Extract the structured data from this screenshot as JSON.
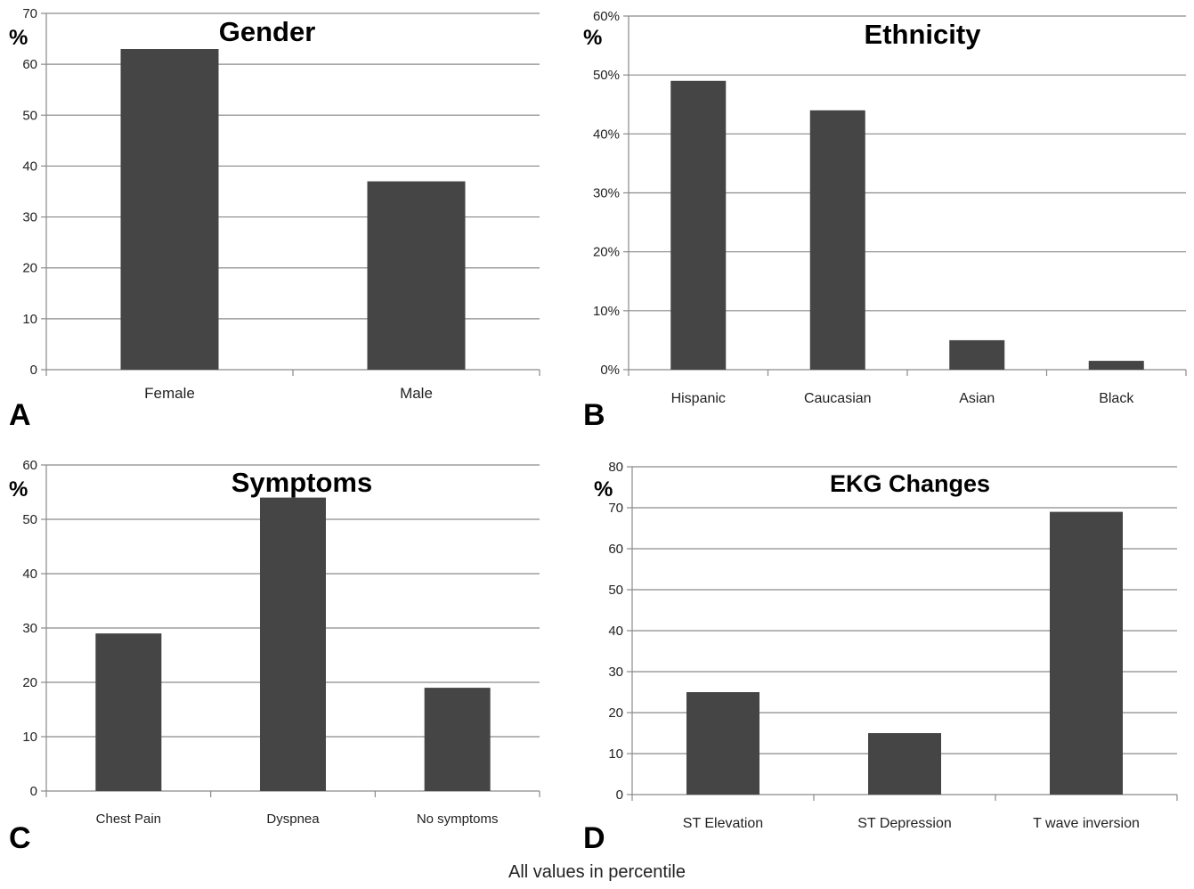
{
  "caption": "All values in percentile",
  "chart_data": [
    {
      "type": "bar",
      "panel_label": "A",
      "title": "Gender",
      "ylabel": "%",
      "categories": [
        "Female",
        "Male"
      ],
      "values": [
        63,
        37
      ],
      "ylim": [
        0,
        70
      ],
      "yticks": [
        0,
        10,
        20,
        30,
        40,
        50,
        60,
        70
      ],
      "ytick_suffix": "",
      "grid": true,
      "bar_color": "#454545"
    },
    {
      "type": "bar",
      "panel_label": "B",
      "title": "Ethnicity",
      "ylabel": "%",
      "categories": [
        "Hispanic",
        "Caucasian",
        "Asian",
        "Black"
      ],
      "values": [
        49,
        44,
        5,
        1.5
      ],
      "ylim": [
        0,
        60
      ],
      "yticks": [
        0,
        10,
        20,
        30,
        40,
        50,
        60
      ],
      "ytick_suffix": "%",
      "grid": true,
      "bar_color": "#454545"
    },
    {
      "type": "bar",
      "panel_label": "C",
      "title": "Symptoms",
      "ylabel": "%",
      "categories": [
        "Chest Pain",
        "Dyspnea",
        "No symptoms"
      ],
      "values": [
        29,
        54,
        19
      ],
      "ylim": [
        0,
        60
      ],
      "yticks": [
        0,
        10,
        20,
        30,
        40,
        50,
        60
      ],
      "ytick_suffix": "",
      "grid": true,
      "bar_color": "#454545"
    },
    {
      "type": "bar",
      "panel_label": "D",
      "title": "EKG Changes",
      "ylabel": "%",
      "categories": [
        "ST Elevation",
        "ST Depression",
        "T wave inversion"
      ],
      "values": [
        25,
        15,
        69
      ],
      "ylim": [
        0,
        80
      ],
      "yticks": [
        0,
        10,
        20,
        30,
        40,
        50,
        60,
        70,
        80
      ],
      "ytick_suffix": "",
      "grid": true,
      "bar_color": "#454545"
    }
  ]
}
